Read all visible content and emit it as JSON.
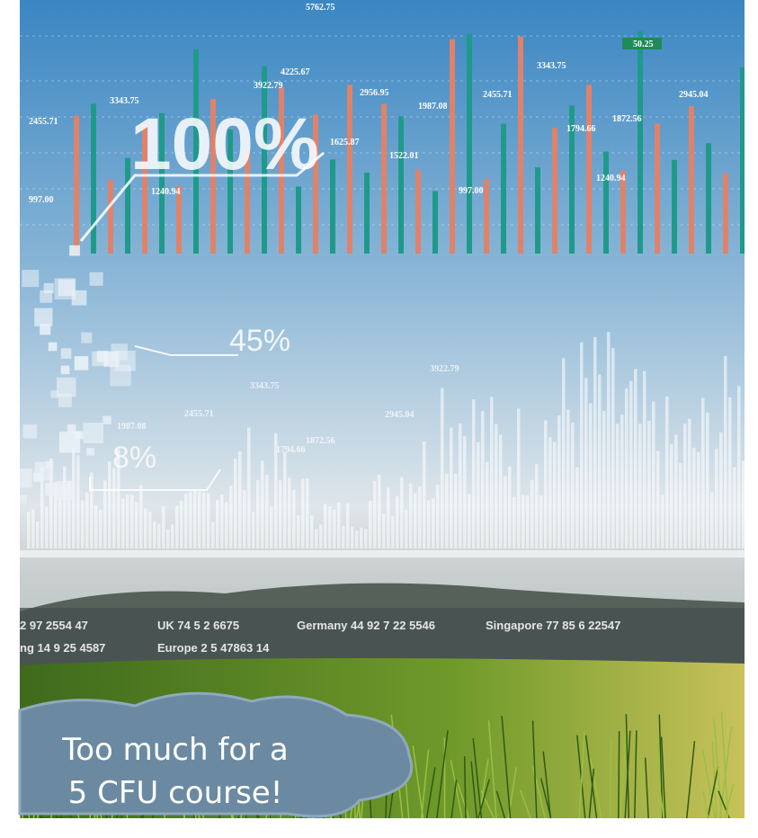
{
  "overlay": {
    "big_percent": "100%",
    "mid_percent": "45%",
    "small_percent": "8%"
  },
  "bar_labels": [
    "5762.75",
    "4225.67",
    "3922.79",
    "3343.75",
    "2956.95",
    "1987.08",
    "2455.71",
    "3343.75",
    "1794.66",
    "1872.56",
    "2945.04",
    "1625.87",
    "1522.01",
    "997.00",
    "1240.94",
    "2455.71",
    "997.00",
    "1240.94",
    "50.25"
  ],
  "faded_labels": [
    "3922.79",
    "2455.71",
    "1987.08",
    "3343.75",
    "2945.04",
    "1794.66",
    "1872.56"
  ],
  "ticker": [
    "2 97 2554 47",
    "UK 74 5 2 6675",
    "Germany 44 92 7 22 5546",
    "Singapore 77 85 6 22547",
    "ng 14 9 25 4587",
    "Europe 2 5 47863 14"
  ],
  "callout": [
    "Too much for a",
    "5 CFU course!"
  ]
}
